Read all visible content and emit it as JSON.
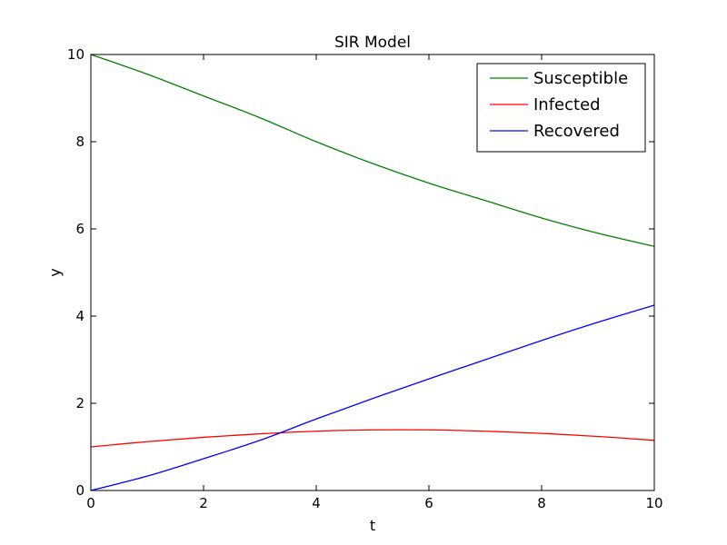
{
  "chart_data": {
    "type": "line",
    "title": "SIR Model",
    "xlabel": "t",
    "ylabel": "y",
    "xlim": [
      0,
      10
    ],
    "ylim": [
      0,
      10
    ],
    "xticks": [
      "0",
      "2",
      "4",
      "6",
      "8",
      "10"
    ],
    "yticks": [
      "0",
      "2",
      "4",
      "6",
      "8",
      "10"
    ],
    "grid": false,
    "legend_position": "top-right",
    "x": [
      0,
      1,
      2,
      3,
      4,
      5,
      6,
      7,
      8,
      9,
      10
    ],
    "series": [
      {
        "name": "Susceptible",
        "color": "#008000",
        "values": [
          10.0,
          9.55,
          9.05,
          8.55,
          8.0,
          7.5,
          7.05,
          6.65,
          6.25,
          5.9,
          5.6
        ]
      },
      {
        "name": "Infected",
        "color": "#ff0000",
        "values": [
          1.0,
          1.12,
          1.22,
          1.3,
          1.36,
          1.39,
          1.39,
          1.36,
          1.31,
          1.24,
          1.15
        ]
      },
      {
        "name": "Recovered",
        "color": "#0000ff",
        "values": [
          0.0,
          0.33,
          0.73,
          1.15,
          1.64,
          2.11,
          2.56,
          3.0,
          3.44,
          3.86,
          4.25
        ]
      }
    ]
  }
}
